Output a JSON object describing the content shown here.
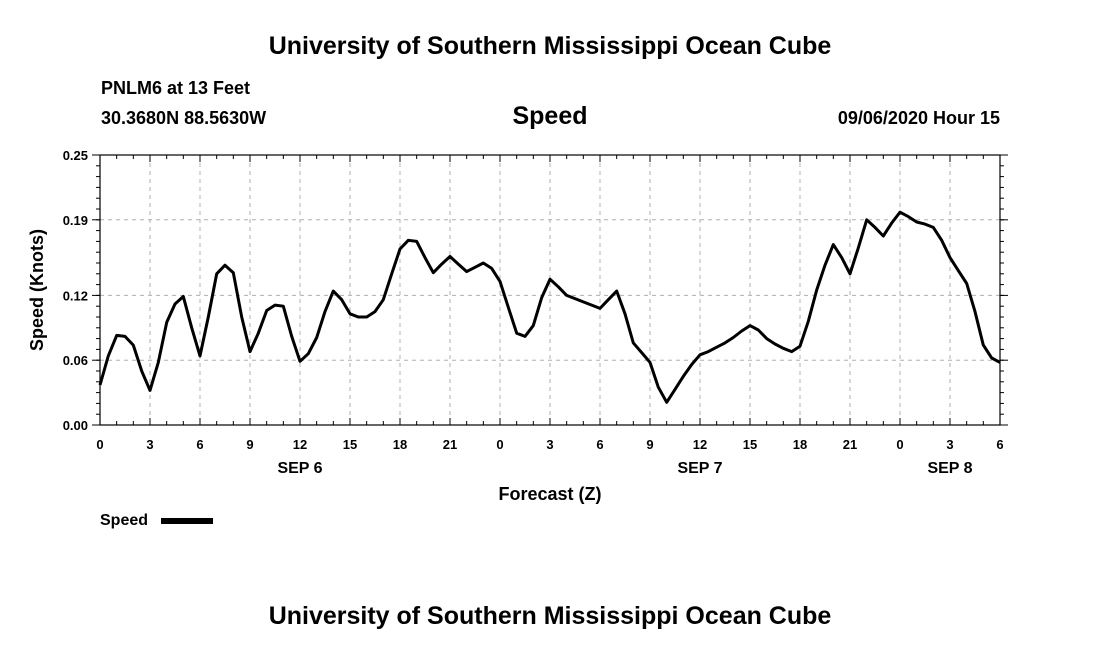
{
  "header": {
    "title_top": "University of Southern Mississippi Ocean Cube",
    "station": "PNLM6 at 13 Feet",
    "coords": "30.3680N 88.5630W",
    "variable": "Speed",
    "datetime": "09/06/2020 Hour 15",
    "title_bottom": "University of Southern Mississippi Ocean Cube"
  },
  "chart_data": {
    "type": "line",
    "title": "Speed",
    "xlabel": "Forecast (Z)",
    "ylabel": "Speed (Knots)",
    "ylim": [
      0,
      0.25
    ],
    "xlim": [
      0,
      54
    ],
    "grid": true,
    "yticks": [
      0.0,
      0.06,
      0.12,
      0.19,
      0.25
    ],
    "ytick_labels": [
      "0.00",
      "0.06",
      "0.12",
      "0.19",
      "0.25"
    ],
    "xticks": [
      0,
      3,
      6,
      9,
      12,
      15,
      18,
      21,
      24,
      27,
      30,
      33,
      36,
      39,
      42,
      45,
      48,
      51,
      54
    ],
    "xtick_labels": [
      "0",
      "3",
      "6",
      "9",
      "12",
      "15",
      "18",
      "21",
      "0",
      "3",
      "6",
      "9",
      "12",
      "15",
      "18",
      "21",
      "0",
      "3",
      "6"
    ],
    "date_labels": [
      {
        "x": 12,
        "label": "SEP 6"
      },
      {
        "x": 36,
        "label": "SEP 7"
      },
      {
        "x": 51,
        "label": "SEP 8"
      }
    ],
    "legend": {
      "label": "Speed",
      "placement": "bottom-left"
    },
    "series": [
      {
        "name": "Speed",
        "color": "#000000",
        "x": [
          0,
          0.5,
          1,
          1.5,
          2,
          2.5,
          3,
          3.5,
          4,
          4.5,
          5,
          5.5,
          6,
          6.5,
          7,
          7.5,
          8,
          8.5,
          9,
          9.5,
          10,
          10.5,
          11,
          11.5,
          12,
          12.5,
          13,
          13.5,
          14,
          14.5,
          15,
          15.5,
          16,
          16.5,
          17,
          17.5,
          18,
          18.5,
          19,
          19.5,
          20,
          20.5,
          21,
          21.5,
          22,
          22.5,
          23,
          23.5,
          24,
          24.5,
          25,
          25.5,
          26,
          26.5,
          27,
          27.5,
          28,
          28.5,
          29,
          29.5,
          30,
          30.5,
          31,
          31.5,
          32,
          32.5,
          33,
          33.5,
          34,
          34.5,
          35,
          35.5,
          36,
          36.5,
          37,
          37.5,
          38,
          38.5,
          39,
          39.5,
          40,
          40.5,
          41,
          41.5,
          42,
          42.5,
          43,
          43.5,
          44,
          44.5,
          45,
          45.5,
          46,
          46.5,
          47,
          47.5,
          48,
          48.5,
          49,
          49.5,
          50,
          50.5,
          51,
          51.5,
          52,
          52.5,
          53,
          53.5,
          54
        ],
        "values": [
          0.037,
          0.064,
          0.083,
          0.082,
          0.074,
          0.05,
          0.032,
          0.058,
          0.095,
          0.112,
          0.119,
          0.09,
          0.064,
          0.1,
          0.14,
          0.148,
          0.141,
          0.1,
          0.068,
          0.085,
          0.106,
          0.111,
          0.11,
          0.082,
          0.059,
          0.066,
          0.081,
          0.105,
          0.124,
          0.116,
          0.103,
          0.1,
          0.1,
          0.105,
          0.116,
          0.14,
          0.163,
          0.171,
          0.17,
          0.155,
          0.141,
          0.149,
          0.156,
          0.149,
          0.142,
          0.146,
          0.15,
          0.145,
          0.133,
          0.109,
          0.085,
          0.082,
          0.092,
          0.118,
          0.135,
          0.128,
          0.12,
          0.117,
          0.114,
          0.111,
          0.108,
          0.116,
          0.124,
          0.103,
          0.076,
          0.067,
          0.058,
          0.035,
          0.021,
          0.033,
          0.045,
          0.056,
          0.065,
          0.068,
          0.072,
          0.076,
          0.081,
          0.087,
          0.092,
          0.088,
          0.08,
          0.075,
          0.071,
          0.068,
          0.073,
          0.096,
          0.125,
          0.148,
          0.167,
          0.155,
          0.14,
          0.164,
          0.19,
          0.183,
          0.175,
          0.187,
          0.197,
          0.193,
          0.188,
          0.186,
          0.183,
          0.171,
          0.155,
          0.143,
          0.131,
          0.105,
          0.074,
          0.062,
          0.058
        ]
      }
    ]
  }
}
